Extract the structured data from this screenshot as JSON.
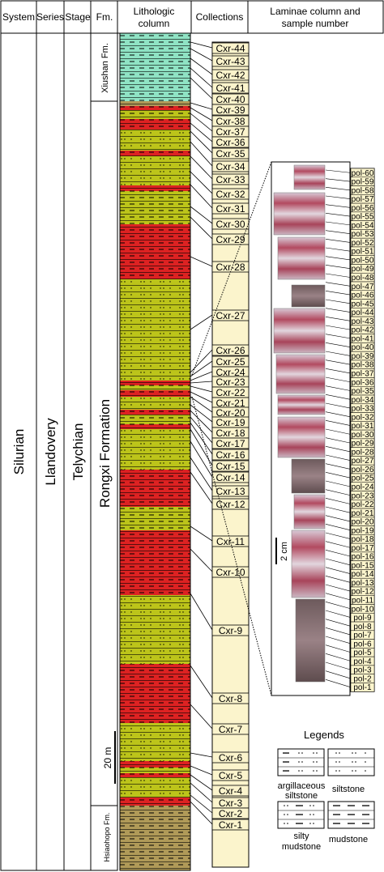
{
  "headers": {
    "system": "System",
    "series": "Series",
    "stage": "Stage",
    "fm": "Fm.",
    "litho_line1": "Lithologic",
    "litho_line2": "column",
    "collections": "Collections",
    "laminae_line1": "Laminae column and",
    "laminae_line2": "sample number"
  },
  "strat": {
    "system": "Silurian",
    "series": "Llandovery",
    "stage": "Telychian",
    "fm_top": "Xiushan Fm.",
    "fm_mid": "Rongxi Formation",
    "fm_bottom": "Hsiaohopo Fm."
  },
  "scale": {
    "column": "20 m",
    "laminae": "2 cm"
  },
  "collections": [
    "Cxr-44",
    "Cxr-43",
    "Cxr-42",
    "Cxr-41",
    "Cxr-40",
    "Cxr-39",
    "Cxr-38",
    "Cxr-37",
    "Cxr-36",
    "Cxr-35",
    "Cxr-34",
    "Cxr-33",
    "Cxr-32",
    "Cxr-31",
    "Cxr-30",
    "Cxr-29",
    "Cxr-28",
    "Cxr-27",
    "Cxr-26",
    "Cxr-25",
    "Cxr-24",
    "Cxr-23",
    "Cxr-22",
    "Cxr-21",
    "Cxr-20",
    "Cxr-19",
    "Cxr-18",
    "Cxr-17",
    "Cxr-16",
    "Cxr-15",
    "Cxr-14",
    "Cxr-13",
    "Cxr-12",
    "Cxr-11",
    "Cxr-10",
    "Cxr-9",
    "Cxr-8",
    "Cxr-7",
    "Cxr-6",
    "Cxr-5",
    "Cxr-4",
    "Cxr-3",
    "Cxr-2",
    "Cxr-1"
  ],
  "pol_samples": [
    "pol-60",
    "pol-59",
    "pol-58",
    "pol-57",
    "pol-56",
    "pol-55",
    "pol-54",
    "pol-53",
    "pol-52",
    "pol-51",
    "pol-50",
    "pol-49",
    "pol-48",
    "pol-47",
    "pol-46",
    "pol-45",
    "pol-44",
    "pol-43",
    "pol-42",
    "pol-41",
    "pol-40",
    "pol-39",
    "pol-38",
    "pol-37",
    "pol-36",
    "pol-35",
    "pol-34",
    "pol-33",
    "pol-32",
    "pol-31",
    "pol-30",
    "pol-29",
    "pol-28",
    "pol-27",
    "pol-26",
    "pol-25",
    "pol-24",
    "pol-23",
    "pol-22",
    "pol-21",
    "pol-20",
    "pol-19",
    "pol-18",
    "pol-17",
    "pol-16",
    "pol-15",
    "pol-14",
    "pol-13",
    "pol-12",
    "pol-11",
    "pol-10",
    "pol-9",
    "pol-8",
    "pol-7",
    "pol-6",
    "pol-5",
    "pol-4",
    "pol-3",
    "pol-2",
    "pol-1"
  ],
  "legend": {
    "title": "Legends",
    "items": [
      {
        "label_1": "argillaceous",
        "label_2": "siltstone",
        "pattern": "argillaceous"
      },
      {
        "label_1": "siltstone",
        "label_2": "",
        "pattern": "siltstone"
      },
      {
        "label_1": "silty",
        "label_2": "mudstone",
        "pattern": "silty-mudstone"
      },
      {
        "label_1": "mudstone",
        "label_2": "",
        "pattern": "mudstone"
      }
    ]
  },
  "colors": {
    "xiushan": "#8fe3c4",
    "olive": "#bcc41a",
    "red": "#dd2222",
    "brown": "#b09a58",
    "collection_fill": "#fbf4cc",
    "pol_fill": "#fbf4cc"
  }
}
